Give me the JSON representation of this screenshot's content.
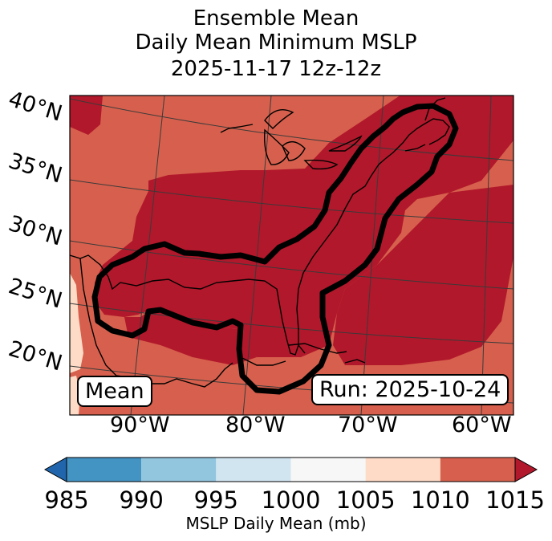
{
  "title": {
    "line1": "Ensemble Mean",
    "line2": "Daily Mean Minimum MSLP",
    "line3": "2025-11-17 12z-12z"
  },
  "map": {
    "lat_labels": [
      "40°N",
      "35°N",
      "30°N",
      "25°N",
      "20°N"
    ],
    "lon_labels": [
      "90°W",
      "80°W",
      "70°W",
      "60°W"
    ],
    "mean_label": "Mean",
    "run_label": "Run: 2025-10-24",
    "colors": {
      "field_1010_1015": "#d6604d",
      "field_above_1015": "#b2182b",
      "field_1005_1010": "#fddbc7",
      "contour": "#000000",
      "graticule": "#3a3a3a",
      "coastline": "#000000"
    }
  },
  "colorbar": {
    "ticks": [
      "985",
      "990",
      "995",
      "1000",
      "1005",
      "1010",
      "1015"
    ],
    "bins": [
      {
        "from": 985,
        "to": 990,
        "color": "#4393c3"
      },
      {
        "from": 990,
        "to": 995,
        "color": "#92c5de"
      },
      {
        "from": 995,
        "to": 1000,
        "color": "#d1e5f0"
      },
      {
        "from": 1000,
        "to": 1005,
        "color": "#f7f7f7"
      },
      {
        "from": 1005,
        "to": 1010,
        "color": "#fddbc7"
      },
      {
        "from": 1010,
        "to": 1015,
        "color": "#d6604d"
      }
    ],
    "under_color": "#2166ac",
    "over_color": "#b2182b",
    "label": "MSLP Daily Mean (mb)"
  }
}
